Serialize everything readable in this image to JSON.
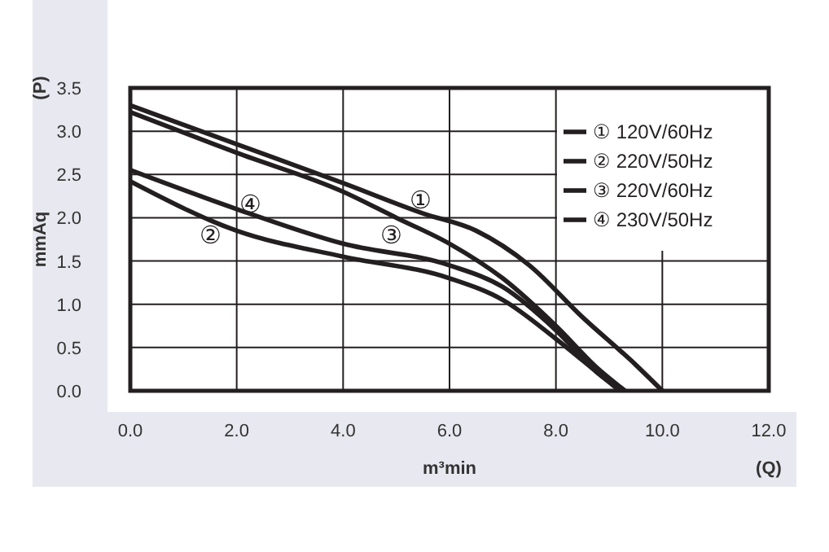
{
  "chart_data": {
    "type": "line",
    "xlabel": "m³min",
    "ylabel": "mmAq",
    "annotations": [
      "(P)",
      "(Q)",
      "①",
      "②",
      "③",
      "④"
    ],
    "xlim": [
      0,
      12
    ],
    "ylim": [
      0,
      3.5
    ],
    "xticks": [
      {
        "value": 0,
        "label": "0.0"
      },
      {
        "value": 2,
        "label": "2.0"
      },
      {
        "value": 4,
        "label": "4.0"
      },
      {
        "value": 6,
        "label": "6.0"
      },
      {
        "value": 8,
        "label": "8.0"
      },
      {
        "value": 10,
        "label": "10.0"
      },
      {
        "value": 12,
        "label": "12.0"
      }
    ],
    "yticks": [
      {
        "value": 0,
        "label": "0.0"
      },
      {
        "value": 0.5,
        "label": "0.5"
      },
      {
        "value": 1,
        "label": "1.0"
      },
      {
        "value": 1.5,
        "label": "1.5"
      },
      {
        "value": 2,
        "label": "2.0"
      },
      {
        "value": 2.5,
        "label": "2.5"
      },
      {
        "value": 3,
        "label": "3.0"
      },
      {
        "value": 3.5,
        "label": "3.5"
      }
    ],
    "grid": true,
    "legend": "top right",
    "marker": "none",
    "line_style": "solid",
    "series": [
      {
        "name": "① 120V/60Hz",
        "color": "#231f20",
        "x": [
          0,
          2,
          4,
          5.5,
          6.5,
          7.5,
          8.5,
          9.5,
          10
        ],
        "values": [
          3.3,
          2.85,
          2.4,
          2.05,
          1.85,
          1.45,
          0.85,
          0.3,
          0
        ]
      },
      {
        "name": "② 220V/50Hz",
        "color": "#231f20",
        "x": [
          0,
          2,
          4,
          6,
          7,
          8,
          8.8,
          9.2
        ],
        "values": [
          2.42,
          1.85,
          1.55,
          1.3,
          1.05,
          0.6,
          0.2,
          0
        ]
      },
      {
        "name": "③ 220V/60Hz",
        "color": "#231f20",
        "x": [
          0,
          2,
          4,
          5,
          6,
          7,
          8,
          8.8,
          9.3
        ],
        "values": [
          3.22,
          2.75,
          2.3,
          2.0,
          1.7,
          1.3,
          0.75,
          0.25,
          0
        ]
      },
      {
        "name": "④ 230V/50Hz",
        "color": "#231f20",
        "x": [
          0,
          2,
          4,
          6,
          7,
          8,
          8.8,
          9.25
        ],
        "values": [
          2.55,
          2.1,
          1.7,
          1.45,
          1.2,
          0.7,
          0.2,
          0
        ]
      }
    ]
  }
}
